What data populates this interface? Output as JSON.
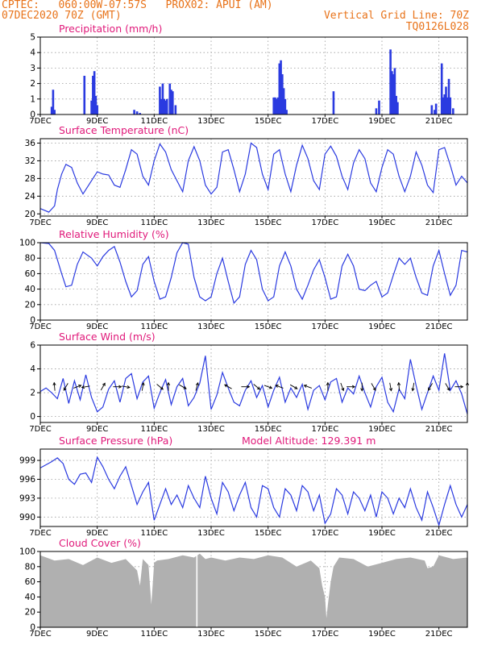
{
  "header": {
    "line1": "CPTEC:   060:00W-07:57S   PROX02: APUI (AM)",
    "line2": "07DEC2020 70Z (GMT)",
    "grid_info": "Vertical Grid Line: 70Z",
    "code": "TQ0126L028"
  },
  "colors": {
    "series": "#2a3ae0",
    "title": "#e0197a",
    "header": "#e8731a",
    "cloud": "#b0b0b0"
  },
  "x_axis": {
    "labels": [
      "7DEC",
      "9DEC",
      "11DEC",
      "13DEC",
      "15DEC",
      "17DEC",
      "19DEC",
      "21DEC"
    ],
    "label_days": [
      7,
      9,
      11,
      13,
      15,
      17,
      19,
      21
    ],
    "day_range": [
      7,
      22
    ]
  },
  "chart_data": [
    {
      "type": "bar",
      "title": "Precipitation (mm/h)",
      "ylim": [
        0,
        5
      ],
      "yticks": [
        0,
        1,
        2,
        3,
        4,
        5
      ],
      "x_unit": "day",
      "x": [
        7.4,
        7.45,
        7.5,
        8.55,
        8.8,
        8.85,
        8.9,
        8.95,
        9.0,
        10.3,
        10.4,
        10.5,
        11.2,
        11.25,
        11.3,
        11.35,
        11.4,
        11.45,
        11.55,
        11.6,
        11.65,
        11.75,
        15.2,
        15.25,
        15.3,
        15.35,
        15.4,
        15.45,
        15.5,
        15.55,
        15.6,
        15.65,
        17.3,
        18.8,
        18.9,
        19.3,
        19.35,
        19.4,
        19.45,
        19.5,
        19.55,
        20.75,
        20.85,
        20.9,
        21.1,
        21.15,
        21.2,
        21.25,
        21.3,
        21.35,
        21.4,
        21.5
      ],
      "values": [
        0.5,
        1.6,
        0.3,
        2.5,
        0.9,
        2.5,
        2.8,
        1.2,
        0.6,
        0.3,
        0.2,
        0.1,
        1.8,
        1.0,
        2.0,
        1.0,
        0.9,
        1.0,
        2.0,
        1.6,
        1.5,
        0.6,
        1.1,
        1.1,
        1.0,
        1.1,
        3.3,
        3.5,
        2.6,
        1.7,
        1.0,
        0.3,
        1.5,
        0.4,
        0.9,
        4.2,
        2.8,
        2.6,
        3.0,
        1.2,
        0.8,
        0.6,
        0.3,
        0.7,
        3.3,
        1.1,
        1.3,
        1.8,
        1.1,
        2.3,
        1.1,
        0.4
      ]
    },
    {
      "type": "line",
      "title": "Surface Temperature (nC)",
      "ylim": [
        19.5,
        37
      ],
      "yticks": [
        20,
        24,
        28,
        32,
        36
      ],
      "x": [
        7.0,
        7.3,
        7.5,
        7.6,
        7.75,
        7.9,
        8.1,
        8.3,
        8.5,
        8.8,
        9.0,
        9.2,
        9.4,
        9.6,
        9.8,
        10.0,
        10.2,
        10.4,
        10.6,
        10.8,
        11.0,
        11.2,
        11.4,
        11.6,
        11.8,
        12.0,
        12.2,
        12.4,
        12.6,
        12.8,
        13.0,
        13.2,
        13.4,
        13.6,
        13.8,
        14.0,
        14.2,
        14.4,
        14.6,
        14.8,
        15.0,
        15.2,
        15.4,
        15.6,
        15.8,
        16.0,
        16.2,
        16.4,
        16.6,
        16.8,
        17.0,
        17.2,
        17.4,
        17.6,
        17.8,
        18.0,
        18.2,
        18.4,
        18.6,
        18.8,
        19.0,
        19.2,
        19.4,
        19.6,
        19.8,
        20.0,
        20.2,
        20.4,
        20.6,
        20.8,
        21.0,
        21.2,
        21.4,
        21.6,
        21.8,
        22.0
      ],
      "values": [
        21.2,
        20.4,
        21.8,
        25.5,
        29.0,
        31.2,
        30.5,
        27.0,
        24.5,
        27.5,
        29.5,
        29.0,
        28.8,
        26.5,
        26.0,
        30.0,
        34.5,
        33.5,
        28.5,
        26.5,
        32.0,
        35.8,
        34.0,
        30.0,
        27.5,
        25.0,
        32.0,
        35.2,
        32.0,
        26.5,
        24.5,
        26.0,
        34.0,
        34.5,
        30.0,
        25.0,
        29.0,
        36.0,
        35.0,
        29.0,
        25.5,
        33.5,
        34.5,
        29.0,
        25.0,
        31.0,
        35.5,
        32.5,
        27.5,
        25.5,
        33.5,
        35.3,
        33.0,
        28.5,
        25.5,
        31.5,
        34.5,
        32.5,
        27.0,
        25.0,
        30.5,
        34.5,
        33.5,
        28.5,
        25.0,
        28.5,
        34.0,
        31.0,
        26.5,
        24.8,
        34.5,
        35.0,
        31.0,
        26.5,
        28.5,
        27.0
      ]
    },
    {
      "type": "line",
      "title": "Relative Humidity (%)",
      "ylim": [
        0,
        100
      ],
      "yticks": [
        0,
        20,
        40,
        60,
        80,
        100
      ],
      "x": [
        7.0,
        7.3,
        7.5,
        7.75,
        7.9,
        8.1,
        8.3,
        8.5,
        8.8,
        9.0,
        9.2,
        9.4,
        9.6,
        9.8,
        10.0,
        10.2,
        10.4,
        10.6,
        10.8,
        11.0,
        11.2,
        11.4,
        11.6,
        11.8,
        12.0,
        12.2,
        12.4,
        12.6,
        12.8,
        13.0,
        13.2,
        13.4,
        13.6,
        13.8,
        14.0,
        14.2,
        14.4,
        14.6,
        14.8,
        15.0,
        15.2,
        15.4,
        15.6,
        15.8,
        16.0,
        16.2,
        16.4,
        16.6,
        16.8,
        17.0,
        17.2,
        17.4,
        17.6,
        17.8,
        18.0,
        18.2,
        18.4,
        18.6,
        18.8,
        19.0,
        19.2,
        19.4,
        19.6,
        19.8,
        20.0,
        20.2,
        20.4,
        20.6,
        20.8,
        21.0,
        21.2,
        21.4,
        21.6,
        21.8,
        22.0
      ],
      "values": [
        100,
        99,
        90,
        60,
        43,
        45,
        72,
        88,
        80,
        70,
        82,
        90,
        95,
        75,
        50,
        30,
        38,
        72,
        82,
        50,
        27,
        30,
        55,
        87,
        100,
        98,
        55,
        30,
        25,
        30,
        60,
        80,
        50,
        22,
        30,
        72,
        90,
        78,
        40,
        25,
        30,
        70,
        88,
        70,
        40,
        27,
        45,
        65,
        78,
        55,
        27,
        30,
        70,
        85,
        70,
        40,
        38,
        45,
        50,
        30,
        35,
        58,
        80,
        72,
        80,
        55,
        35,
        32,
        70,
        90,
        60,
        32,
        45,
        90,
        88
      ]
    },
    {
      "type": "line",
      "title": "Surface Wind (m/s)",
      "ylim": [
        -0.5,
        6
      ],
      "yticks": [
        0,
        2,
        4,
        6
      ],
      "x": [
        7.0,
        7.2,
        7.4,
        7.6,
        7.8,
        8.0,
        8.2,
        8.4,
        8.6,
        8.8,
        9.0,
        9.2,
        9.4,
        9.6,
        9.8,
        10.0,
        10.2,
        10.4,
        10.6,
        10.8,
        11.0,
        11.2,
        11.4,
        11.6,
        11.8,
        12.0,
        12.2,
        12.4,
        12.6,
        12.8,
        13.0,
        13.2,
        13.4,
        13.6,
        13.8,
        14.0,
        14.2,
        14.4,
        14.6,
        14.8,
        15.0,
        15.2,
        15.4,
        15.6,
        15.8,
        16.0,
        16.2,
        16.4,
        16.6,
        16.8,
        17.0,
        17.2,
        17.4,
        17.6,
        17.8,
        18.0,
        18.2,
        18.4,
        18.6,
        18.8,
        19.0,
        19.2,
        19.4,
        19.6,
        19.8,
        20.0,
        20.2,
        20.4,
        20.6,
        20.8,
        21.0,
        21.2,
        21.4,
        21.6,
        21.8,
        22.0
      ],
      "values": [
        2.1,
        2.4,
        2.0,
        1.5,
        3.2,
        1.1,
        3.0,
        1.4,
        3.5,
        1.6,
        0.4,
        0.8,
        2.3,
        3.0,
        1.2,
        3.2,
        3.6,
        1.5,
        2.9,
        3.4,
        0.7,
        2.0,
        3.1,
        1.0,
        2.5,
        3.2,
        0.9,
        1.6,
        2.8,
        5.1,
        0.6,
        1.8,
        3.7,
        2.4,
        1.2,
        0.9,
        2.2,
        3.0,
        1.6,
        2.6,
        0.8,
        2.2,
        3.3,
        1.2,
        2.4,
        1.6,
        2.7,
        0.6,
        2.2,
        2.6,
        1.4,
        2.9,
        3.2,
        1.2,
        2.4,
        1.9,
        3.4,
        2.0,
        0.8,
        2.5,
        3.3,
        1.2,
        0.4,
        2.3,
        1.5,
        4.8,
        2.6,
        0.6,
        2.0,
        3.4,
        2.2,
        5.3,
        2.2,
        3.0,
        1.9,
        0.2
      ]
    },
    {
      "type": "line",
      "title": "Surface Pressure (hPa)",
      "annotation": "Model Altitude: 129.391 m",
      "ylim": [
        988.5,
        1000.8
      ],
      "yticks": [
        990,
        993,
        996,
        999
      ],
      "x": [
        7.0,
        7.2,
        7.4,
        7.6,
        7.8,
        8.0,
        8.2,
        8.4,
        8.6,
        8.8,
        9.0,
        9.2,
        9.4,
        9.6,
        9.8,
        10.0,
        10.2,
        10.4,
        10.6,
        10.8,
        11.0,
        11.2,
        11.4,
        11.6,
        11.8,
        12.0,
        12.2,
        12.4,
        12.6,
        12.8,
        13.0,
        13.2,
        13.4,
        13.6,
        13.8,
        14.0,
        14.2,
        14.4,
        14.6,
        14.8,
        15.0,
        15.2,
        15.4,
        15.6,
        15.8,
        16.0,
        16.2,
        16.4,
        16.6,
        16.8,
        17.0,
        17.2,
        17.4,
        17.6,
        17.8,
        18.0,
        18.2,
        18.4,
        18.6,
        18.8,
        19.0,
        19.2,
        19.4,
        19.6,
        19.8,
        20.0,
        20.2,
        20.4,
        20.6,
        20.8,
        21.0,
        21.2,
        21.4,
        21.6,
        21.8,
        22.0
      ],
      "values": [
        997.8,
        998.3,
        998.8,
        999.4,
        998.5,
        996.0,
        995.2,
        996.8,
        997.0,
        995.5,
        999.5,
        998.0,
        996.0,
        994.5,
        996.5,
        998.0,
        995.0,
        992.0,
        994.0,
        995.5,
        989.5,
        992.0,
        994.5,
        992.0,
        993.5,
        991.5,
        995.0,
        993.0,
        991.5,
        996.5,
        993.0,
        990.5,
        995.5,
        994.0,
        991.0,
        993.5,
        995.5,
        991.5,
        990.0,
        995.0,
        994.5,
        991.5,
        990.0,
        994.5,
        993.5,
        991.0,
        995.0,
        994.0,
        991.0,
        993.5,
        989.0,
        990.5,
        994.5,
        993.5,
        990.5,
        994.0,
        993.0,
        991.0,
        993.5,
        990.0,
        994.0,
        993.0,
        990.5,
        993.0,
        991.5,
        994.5,
        991.5,
        989.5,
        994.0,
        991.5,
        988.7,
        992.0,
        995.0,
        992.0,
        990.0,
        992.0
      ]
    },
    {
      "type": "area",
      "title": "Cloud Cover (%)",
      "ylim": [
        0,
        100
      ],
      "yticks": [
        0,
        20,
        40,
        60,
        80,
        100
      ],
      "x": [
        7.0,
        7.5,
        8.0,
        8.5,
        9.0,
        9.5,
        10.0,
        10.4,
        10.5,
        10.6,
        10.8,
        10.9,
        11.0,
        11.1,
        11.5,
        12.0,
        12.4,
        12.6,
        12.8,
        13.0,
        13.5,
        14.0,
        14.5,
        15.0,
        15.5,
        16.0,
        16.5,
        16.8,
        16.9,
        17.0,
        17.05,
        17.1,
        17.2,
        17.3,
        17.5,
        18.0,
        18.5,
        19.0,
        19.5,
        20.0,
        20.5,
        20.6,
        20.8,
        21.0,
        21.5,
        22.0
      ],
      "values": [
        95,
        88,
        90,
        82,
        92,
        85,
        90,
        75,
        55,
        90,
        82,
        30,
        85,
        88,
        90,
        95,
        92,
        97,
        90,
        92,
        88,
        92,
        90,
        95,
        92,
        80,
        88,
        78,
        55,
        40,
        12,
        30,
        60,
        80,
        92,
        90,
        80,
        85,
        90,
        92,
        88,
        78,
        80,
        95,
        90,
        92
      ]
    }
  ],
  "wind_arrows": [
    {
      "day": 7.5,
      "angle": -95
    },
    {
      "day": 7.9,
      "angle": 120
    },
    {
      "day": 8.3,
      "angle": -20
    },
    {
      "day": 8.6,
      "angle": 170
    },
    {
      "day": 9.2,
      "angle": -60
    },
    {
      "day": 9.7,
      "angle": 0
    },
    {
      "day": 10.0,
      "angle": 10
    },
    {
      "day": 10.6,
      "angle": -80
    },
    {
      "day": 11.2,
      "angle": 40
    },
    {
      "day": 11.5,
      "angle": -90
    },
    {
      "day": 12.0,
      "angle": 30
    },
    {
      "day": 12.5,
      "angle": -75
    },
    {
      "day": 13.6,
      "angle": -150
    },
    {
      "day": 14.2,
      "angle": 0
    },
    {
      "day": 14.6,
      "angle": 40
    },
    {
      "day": 15.0,
      "angle": 20
    },
    {
      "day": 15.4,
      "angle": 200
    },
    {
      "day": 15.9,
      "angle": 30
    },
    {
      "day": 16.4,
      "angle": -160
    },
    {
      "day": 17.1,
      "angle": -90
    },
    {
      "day": 17.6,
      "angle": 70
    },
    {
      "day": 17.9,
      "angle": 0
    },
    {
      "day": 18.3,
      "angle": 90
    },
    {
      "day": 18.7,
      "angle": 60
    },
    {
      "day": 19.3,
      "angle": 80
    },
    {
      "day": 19.6,
      "angle": -95
    },
    {
      "day": 20.1,
      "angle": 100
    },
    {
      "day": 20.7,
      "angle": 120
    },
    {
      "day": 21.3,
      "angle": 60
    },
    {
      "day": 21.7,
      "angle": 0
    },
    {
      "day": 22.0,
      "angle": -90
    }
  ]
}
